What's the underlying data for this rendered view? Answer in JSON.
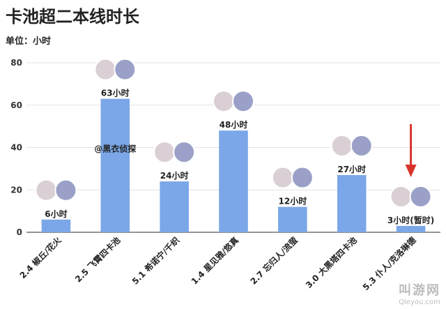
{
  "page": {
    "title": "卡池超二本线时长",
    "unit_label": "单位：小时"
  },
  "chart_data": {
    "type": "bar",
    "categories": [
      "2.4 椒丘/花火",
      "2.5 飞霄四卡池",
      "5.1 希诺宁/千织",
      "1.4 星见雅/悠真",
      "2.7 忘归人/流萤",
      "3.0 大黑塔四卡池",
      "5.3 仆人/克洛琳德"
    ],
    "values": [
      6,
      63,
      24,
      48,
      12,
      27,
      3
    ],
    "data_labels": [
      "6小时",
      "63小时",
      "24小时",
      "48小时",
      "12小时",
      "27小时",
      "3小时(暂时)"
    ],
    "ylim": [
      0,
      80
    ],
    "yticks": [
      0,
      20,
      40,
      60,
      80
    ],
    "grid": true,
    "bar_color": "#7ba7e8",
    "annotation": {
      "text": "@黑衣侦探",
      "category_index": 1
    },
    "highlight_arrow": {
      "category_index": 6,
      "color": "#d9342b"
    }
  },
  "watermark": {
    "main": "叫游网",
    "sub": "Qleyou.com"
  }
}
